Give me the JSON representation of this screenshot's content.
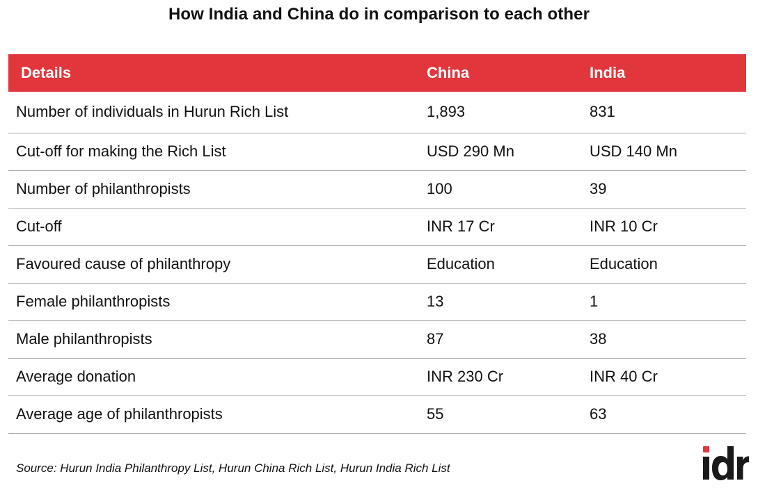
{
  "title": "How India and China do in comparison to each other",
  "table": {
    "headers": [
      "Details",
      "China",
      "India"
    ],
    "rows": [
      [
        "Number of individuals in Hurun Rich List",
        "1,893",
        "831"
      ],
      [
        "Cut-off for making the Rich List",
        "USD 290 Mn",
        "USD 140 Mn"
      ],
      [
        "Number of philanthropists",
        "100",
        "39"
      ],
      [
        "Cut-off",
        "INR 17 Cr",
        "INR 10 Cr"
      ],
      [
        "Favoured cause of philanthropy",
        "Education",
        "Education"
      ],
      [
        "Female philanthropists",
        "13",
        "1"
      ],
      [
        "Male philanthropists",
        "87",
        "38"
      ],
      [
        "Average donation",
        "INR 230 Cr",
        "INR 40 Cr"
      ],
      [
        "Average age of philanthropists",
        "55",
        "63"
      ]
    ]
  },
  "source": "Source: Hurun India Philanthropy List, Hurun China Rich List, Hurun India Rich List",
  "logo": {
    "text": "idr",
    "icon": "idr-logo",
    "accent_color": "#e0363c",
    "text_color": "#1a1a1a"
  },
  "colors": {
    "header_bg": "#e0363c",
    "header_text": "#ffffff",
    "row_divider": "#a8a8a8"
  }
}
